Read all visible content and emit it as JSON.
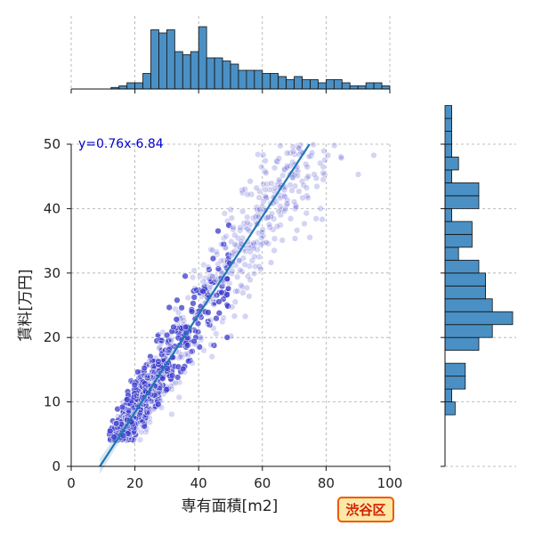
{
  "chart_data": {
    "type": "scatter",
    "xlabel": "専有面積[m2]",
    "ylabel": "賃料[万円]",
    "xlim": [
      0,
      100
    ],
    "ylim": [
      0,
      50
    ],
    "x_ticks": [
      0,
      20,
      40,
      60,
      80,
      100
    ],
    "y_ticks": [
      0,
      10,
      20,
      30,
      40,
      50
    ],
    "grid": true,
    "regression": {
      "slope": 0.76,
      "intercept": -6.84,
      "label": "y=0.76x-6.84"
    },
    "badge": "渋谷区",
    "colors": {
      "point": "#3a3acc",
      "line": "#1f77b4",
      "hist_fill": "#4a90c4",
      "equation": "#0000cc",
      "badge_fill": "#fde8a8",
      "badge_border": "#f05a00",
      "badge_text": "#d02000"
    },
    "scatter_generator": {
      "seed": 7,
      "count": 1700
    },
    "x_marginal_hist": {
      "bin_width": 2.5,
      "bin_start": 0,
      "counts": [
        0,
        0,
        0,
        0,
        0,
        0.5,
        1,
        2,
        2,
        5,
        19,
        18,
        19,
        12,
        11,
        12,
        20,
        10,
        10,
        9,
        8,
        6,
        6,
        6,
        5,
        5,
        4,
        3,
        4,
        3,
        3,
        2,
        3,
        3,
        2,
        1,
        1,
        2,
        2,
        1
      ]
    },
    "y_marginal_hist": {
      "bin_width": 2,
      "bin_start": 0,
      "counts": [
        0,
        0,
        0,
        0,
        1.5,
        1,
        3,
        3,
        0,
        5,
        7,
        10,
        7,
        6,
        6,
        5,
        2,
        4,
        4,
        1,
        5,
        5,
        1,
        2,
        1,
        1,
        1,
        1
      ]
    }
  }
}
